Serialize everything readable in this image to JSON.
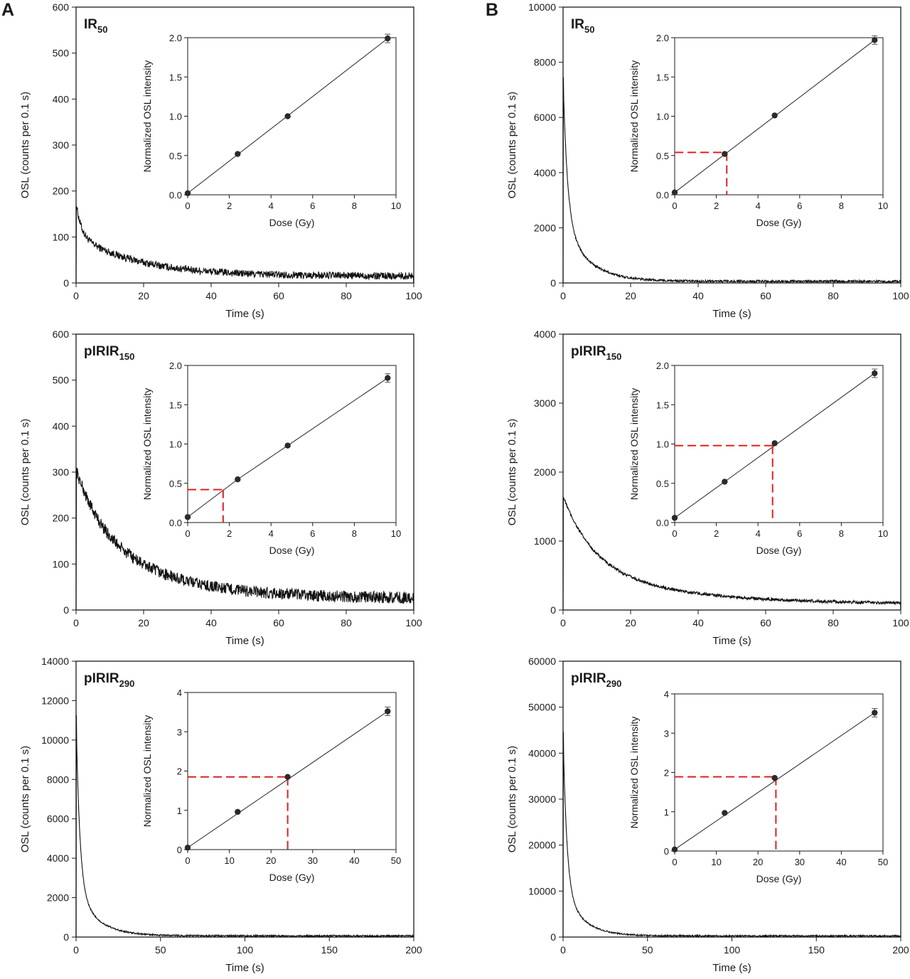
{
  "panel_letters": [
    "A",
    "B"
  ],
  "chart_data": [
    {
      "id": "A-IR50",
      "type": "line",
      "title": "IR",
      "title_sub": "50",
      "xlabel": "Time (s)",
      "ylabel": "OSL (counts per 0.1 s)",
      "xlim": [
        0,
        100
      ],
      "ylim": [
        0,
        600
      ],
      "xticks": [
        0,
        20,
        40,
        60,
        80,
        100
      ],
      "yticks": [
        0,
        100,
        200,
        300,
        400,
        500,
        600
      ],
      "decay": {
        "peak": 175,
        "baseline": 15,
        "amplitudes": [
          70,
          90
        ],
        "tau": [
          1.5,
          18
        ],
        "noise": 8,
        "duration": 100
      },
      "inset": {
        "type": "scatter",
        "xlabel": "Dose (Gy)",
        "ylabel": "Normalized OSL intensity",
        "xlim": [
          0,
          10
        ],
        "ylim": [
          0,
          2.0
        ],
        "xticks": [
          0,
          2,
          4,
          6,
          8,
          10
        ],
        "yticks": [
          "0.0",
          "0.5",
          "1.0",
          "1.5",
          "2.0"
        ],
        "x": [
          0,
          2.4,
          4.8,
          9.6
        ],
        "y": [
          0.02,
          0.52,
          1.0,
          1.99
        ],
        "fit": [
          [
            0,
            0.02
          ],
          [
            9.6,
            1.99
          ]
        ],
        "de": [
          0.0,
          0.02
        ]
      }
    },
    {
      "id": "B-IR50",
      "type": "line",
      "title": "IR",
      "title_sub": "50",
      "xlabel": "Time (s)",
      "ylabel": "OSL (counts per 0.1 s)",
      "xlim": [
        0,
        100
      ],
      "ylim": [
        0,
        10000
      ],
      "xticks": [
        0,
        20,
        40,
        60,
        80,
        100
      ],
      "yticks": [
        0,
        2000,
        4000,
        6000,
        8000,
        10000
      ],
      "decay": {
        "peak": 7500,
        "baseline": 60,
        "amplitudes": [
          5200,
          2200
        ],
        "tau": [
          1.3,
          7
        ],
        "noise": 40,
        "duration": 100
      },
      "inset": {
        "type": "scatter",
        "xlabel": "Dose (Gy)",
        "ylabel": "Normalized OSL intensity",
        "xlim": [
          0,
          10
        ],
        "ylim": [
          0,
          2.0
        ],
        "xticks": [
          0,
          2,
          4,
          6,
          8,
          10
        ],
        "yticks": [
          "0.0",
          "0.5",
          "1.0",
          "1.5",
          "2.0"
        ],
        "x": [
          0,
          2.4,
          4.8,
          9.6
        ],
        "y": [
          0.03,
          0.52,
          1.01,
          1.97
        ],
        "fit": [
          [
            0,
            0.03
          ],
          [
            9.6,
            1.97
          ]
        ],
        "de": [
          2.5,
          0.54
        ]
      }
    },
    {
      "id": "A-pIRIR150",
      "type": "line",
      "title": "pIRIR",
      "title_sub": "150",
      "xlabel": "Time (s)",
      "ylabel": "OSL (counts per 0.1 s)",
      "xlim": [
        0,
        100
      ],
      "ylim": [
        0,
        600
      ],
      "xticks": [
        0,
        20,
        40,
        60,
        80,
        100
      ],
      "yticks": [
        0,
        100,
        200,
        300,
        400,
        500,
        600
      ],
      "decay": {
        "peak": 295,
        "baseline": 25,
        "amplitudes": [
          120,
          160
        ],
        "tau": [
          8,
          22
        ],
        "noise": 13,
        "duration": 100
      },
      "inset": {
        "type": "scatter",
        "xlabel": "Dose (Gy)",
        "ylabel": "Normalized OSL intensity",
        "xlim": [
          0,
          10
        ],
        "ylim": [
          0,
          2.0
        ],
        "xticks": [
          0,
          2,
          4,
          6,
          8,
          10
        ],
        "yticks": [
          "0.0",
          "0.5",
          "1.0",
          "1.5",
          "2.0"
        ],
        "x": [
          0,
          2.4,
          4.8,
          9.6
        ],
        "y": [
          0.07,
          0.55,
          0.98,
          1.84
        ],
        "fit": [
          [
            0,
            0.07
          ],
          [
            2.4,
            0.55
          ],
          [
            4.8,
            0.98
          ],
          [
            9.6,
            1.84
          ]
        ],
        "de": [
          1.7,
          0.42
        ]
      }
    },
    {
      "id": "B-pIRIR150",
      "type": "line",
      "title": "pIRIR",
      "title_sub": "150",
      "xlabel": "Time (s)",
      "ylabel": "OSL (counts per 0.1 s)",
      "xlim": [
        0,
        100
      ],
      "ylim": [
        0,
        4000
      ],
      "xticks": [
        0,
        20,
        40,
        60,
        80,
        100
      ],
      "yticks": [
        0,
        1000,
        2000,
        3000,
        4000
      ],
      "decay": {
        "peak": 1650,
        "baseline": 80,
        "amplitudes": [
          1000,
          570
        ],
        "tau": [
          9,
          30
        ],
        "noise": 22,
        "duration": 100
      },
      "inset": {
        "type": "scatter",
        "xlabel": "Dose (Gy)",
        "ylabel": "Normalized OSL intensity",
        "xlim": [
          0,
          10
        ],
        "ylim": [
          0,
          2.0
        ],
        "xticks": [
          0,
          2,
          4,
          6,
          8,
          10
        ],
        "yticks": [
          "0.0",
          "0.5",
          "1.0",
          "1.5",
          "2.0"
        ],
        "x": [
          0,
          2.4,
          4.8,
          9.6
        ],
        "y": [
          0.06,
          0.52,
          1.01,
          1.9
        ],
        "fit": [
          [
            0,
            0.06
          ],
          [
            9.6,
            1.9
          ]
        ],
        "de": [
          4.7,
          0.98
        ]
      }
    },
    {
      "id": "A-pIRIR290",
      "type": "line",
      "title": "pIRIR",
      "title_sub": "290",
      "xlabel": "Time (s)",
      "ylabel": "OSL (counts per 0.1 s)",
      "xlim": [
        0,
        200
      ],
      "ylim": [
        0,
        14000
      ],
      "xticks": [
        0,
        50,
        100,
        150,
        200
      ],
      "yticks": [
        0,
        2000,
        4000,
        6000,
        8000,
        10000,
        12000,
        14000
      ],
      "decay": {
        "peak": 11300,
        "baseline": 60,
        "amplitudes": [
          8800,
          2400
        ],
        "tau": [
          2.2,
          12
        ],
        "noise": 40,
        "duration": 200
      },
      "inset": {
        "type": "scatter",
        "xlabel": "Dose (Gy)",
        "ylabel": "Normalized OSL intensity",
        "xlim": [
          0,
          50
        ],
        "ylim": [
          0,
          4
        ],
        "xticks": [
          0,
          10,
          20,
          30,
          40,
          50
        ],
        "yticks": [
          "0",
          "1",
          "2",
          "3",
          "4"
        ],
        "x": [
          0,
          12,
          24,
          48
        ],
        "y": [
          0.05,
          0.96,
          1.85,
          3.52
        ],
        "fit": [
          [
            0,
            0.05
          ],
          [
            48,
            3.52
          ]
        ],
        "de": [
          24,
          1.85
        ]
      }
    },
    {
      "id": "B-pIRIR290",
      "type": "line",
      "title": "pIRIR",
      "title_sub": "290",
      "xlabel": "Time (s)",
      "ylabel": "OSL (counts per 0.1 s)",
      "xlim": [
        0,
        200
      ],
      "ylim": [
        0,
        60000
      ],
      "xticks": [
        0,
        50,
        100,
        150,
        200
      ],
      "yticks": [
        0,
        10000,
        20000,
        30000,
        40000,
        50000,
        60000
      ],
      "decay": {
        "peak": 44800,
        "baseline": 250,
        "amplitudes": [
          34000,
          10500
        ],
        "tau": [
          2.2,
          11
        ],
        "noise": 160,
        "duration": 200
      },
      "inset": {
        "type": "scatter",
        "xlabel": "Dose (Gy)",
        "ylabel": "Normalized OSL intensity",
        "xlim": [
          0,
          50
        ],
        "ylim": [
          0,
          4
        ],
        "xticks": [
          0,
          10,
          20,
          30,
          40,
          50
        ],
        "yticks": [
          "0",
          "1",
          "2",
          "3",
          "4"
        ],
        "x": [
          0,
          12,
          24,
          48
        ],
        "y": [
          0.04,
          0.97,
          1.86,
          3.52
        ],
        "fit": [
          [
            0,
            0.04
          ],
          [
            48,
            3.52
          ]
        ],
        "de": [
          24.3,
          1.89
        ]
      }
    }
  ]
}
